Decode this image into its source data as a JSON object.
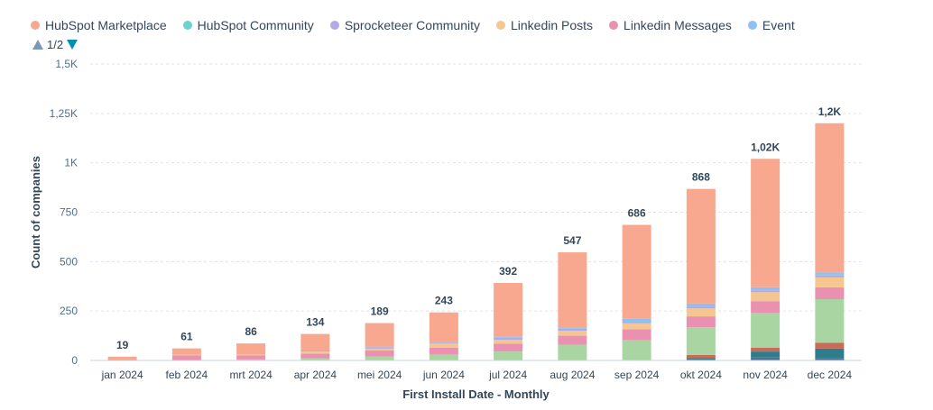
{
  "legend": {
    "items": [
      {
        "label": "HubSpot Marketplace",
        "color": "#f8a88f"
      },
      {
        "label": "HubSpot Community",
        "color": "#6cd3d1"
      },
      {
        "label": "Sprocketeer Community",
        "color": "#b4a8e6"
      },
      {
        "label": "Linkedin Posts",
        "color": "#f5c78e"
      },
      {
        "label": "Linkedin Messages",
        "color": "#ea90b1"
      },
      {
        "label": "Event",
        "color": "#8fbff5"
      }
    ],
    "page_label": "1/2"
  },
  "chart_data": {
    "type": "bar",
    "stacked": true,
    "xlabel": "First Install Date - Monthly",
    "ylabel": "Count of companies",
    "ylim": [
      0,
      1500
    ],
    "yticks": [
      0,
      250,
      500,
      750,
      1000,
      1250,
      1500
    ],
    "ytick_labels": [
      "0",
      "250",
      "500",
      "750",
      "1K",
      "1,25K",
      "1,5K"
    ],
    "grid": true,
    "legend_position": "top-left",
    "categories": [
      "jan 2024",
      "feb 2024",
      "mrt 2024",
      "apr 2024",
      "mei 2024",
      "jun 2024",
      "jul 2024",
      "aug 2024",
      "sep 2024",
      "okt 2024",
      "nov 2024",
      "dec 2024"
    ],
    "totals": [
      19,
      61,
      86,
      134,
      189,
      243,
      392,
      547,
      686,
      868,
      1020,
      1200
    ],
    "total_labels": [
      "19",
      "61",
      "86",
      "134",
      "189",
      "243",
      "392",
      "547",
      "686",
      "868",
      "1,02K",
      "1,2K"
    ],
    "series": [
      {
        "color": "#516f90",
        "values": [
          0,
          0,
          0,
          0,
          0,
          0,
          0,
          0,
          0,
          5,
          15,
          10
        ]
      },
      {
        "color": "#2e7d8c",
        "values": [
          0,
          0,
          0,
          0,
          0,
          0,
          0,
          0,
          3,
          8,
          30,
          50
        ]
      },
      {
        "color": "#c96b59",
        "values": [
          0,
          0,
          0,
          0,
          0,
          0,
          0,
          0,
          0,
          15,
          20,
          30
        ]
      },
      {
        "color": "#a8d5a2",
        "values": [
          0,
          0,
          5,
          10,
          20,
          30,
          45,
          80,
          100,
          140,
          175,
          220
        ]
      },
      {
        "name": "Linkedin Messages",
        "color": "#ea90b1",
        "values": [
          5,
          25,
          20,
          25,
          30,
          35,
          40,
          45,
          55,
          55,
          60,
          60
        ]
      },
      {
        "name": "Linkedin Posts",
        "color": "#f5c78e",
        "values": [
          0,
          5,
          5,
          10,
          10,
          20,
          20,
          25,
          30,
          40,
          45,
          50
        ]
      },
      {
        "name": "Sprocketeer Community",
        "color": "#b4a8e6",
        "values": [
          0,
          0,
          0,
          5,
          5,
          5,
          10,
          10,
          10,
          10,
          10,
          10
        ]
      },
      {
        "name": "HubSpot Community",
        "color": "#6cd3d1",
        "values": [
          0,
          0,
          0,
          0,
          0,
          0,
          0,
          0,
          5,
          5,
          5,
          5
        ]
      },
      {
        "name": "Event",
        "color": "#8fbff5",
        "values": [
          0,
          0,
          0,
          0,
          5,
          5,
          5,
          7,
          8,
          10,
          10,
          10
        ]
      },
      {
        "name": "HubSpot Marketplace",
        "color": "#f8a88f",
        "values": [
          14,
          31,
          56,
          84,
          119,
          148,
          272,
          380,
          475,
          580,
          650,
          755
        ]
      }
    ]
  }
}
